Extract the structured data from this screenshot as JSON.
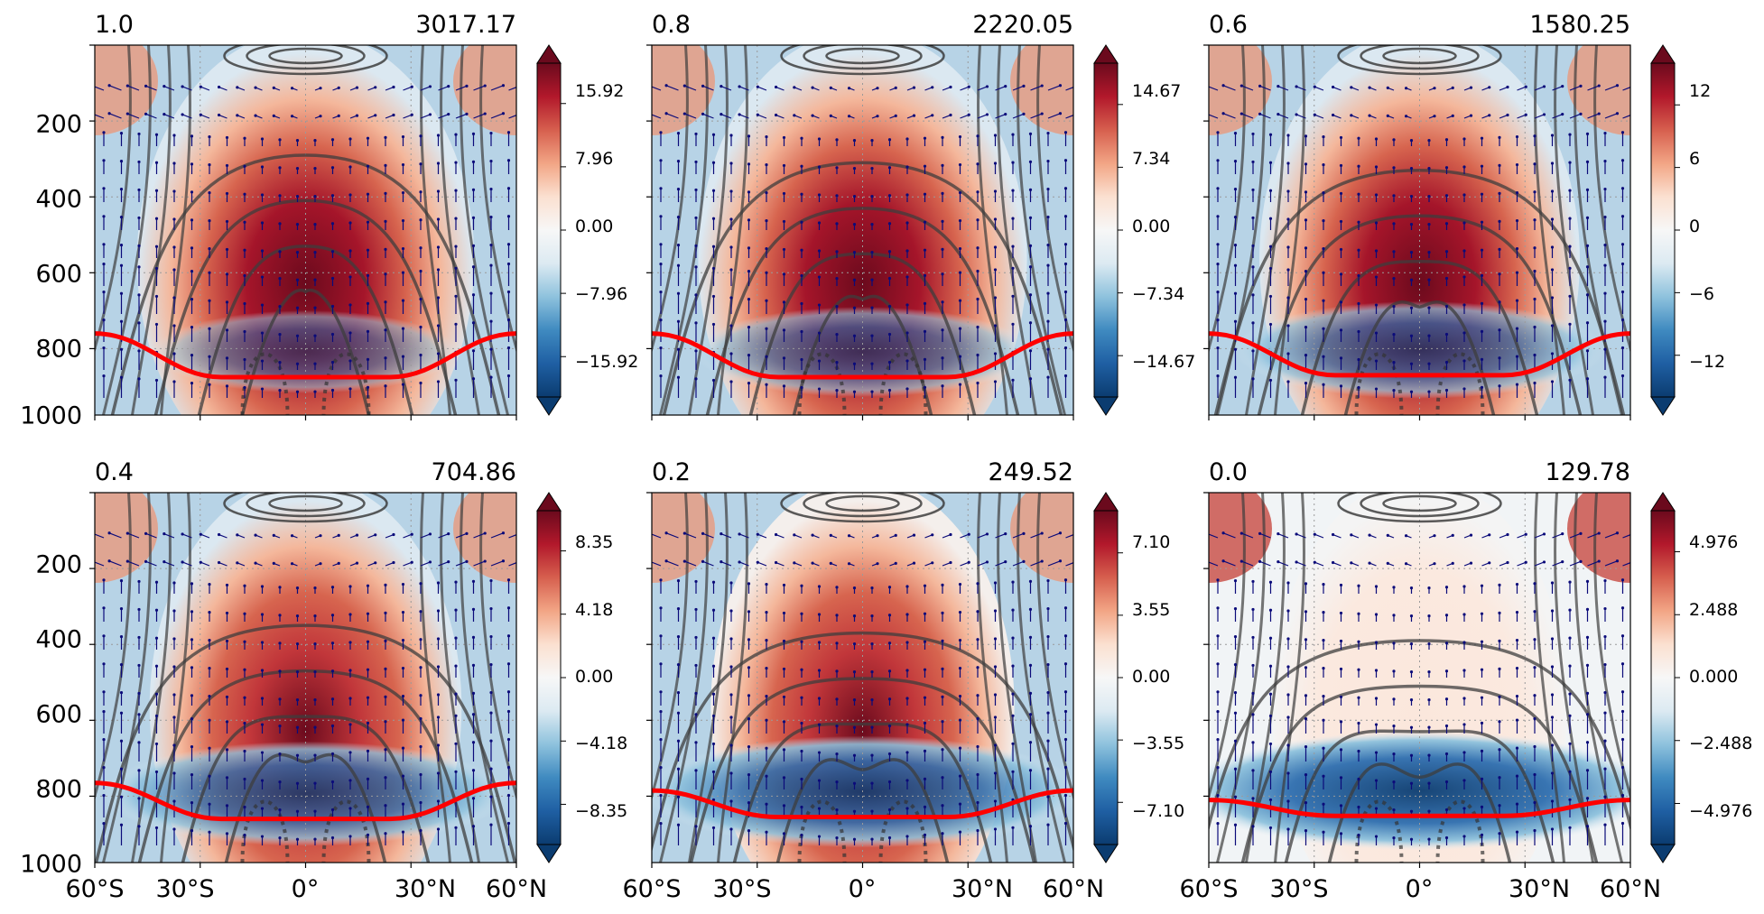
{
  "figure": {
    "y_ticks": [
      "200",
      "400",
      "600",
      "800",
      "1000"
    ],
    "x_ticks": [
      "60°S",
      "30°S",
      "0°",
      "30°N",
      "60°N"
    ]
  },
  "chart_data": [
    {
      "type": "heatmap",
      "title_left": "1.0",
      "title_right": "3017.17",
      "xlim": [
        -60,
        60
      ],
      "ylim": [
        1000,
        25
      ],
      "colorbar_ticks": [
        "15.92",
        "7.96",
        "0.00",
        "−7.96",
        "−15.92"
      ],
      "colorbar_range": [
        -21,
        21
      ],
      "tropopause_equator_hPa": 125,
      "tropopause_edge_hPa": 240
    },
    {
      "type": "heatmap",
      "title_left": "0.8",
      "title_right": "2220.05",
      "xlim": [
        -60,
        60
      ],
      "ylim": [
        1000,
        25
      ],
      "colorbar_ticks": [
        "14.67",
        "7.34",
        "0.00",
        "−7.34",
        "−14.67"
      ],
      "colorbar_range": [
        -19.5,
        19.5
      ],
      "tropopause_equator_hPa": 125,
      "tropopause_edge_hPa": 240
    },
    {
      "type": "heatmap",
      "title_left": "0.6",
      "title_right": "1580.25",
      "xlim": [
        -60,
        60
      ],
      "ylim": [
        1000,
        25
      ],
      "colorbar_ticks": [
        "12",
        "6",
        "0",
        "−6",
        "−12"
      ],
      "colorbar_range": [
        -16,
        16
      ],
      "tropopause_equator_hPa": 130,
      "tropopause_edge_hPa": 240
    },
    {
      "type": "heatmap",
      "title_left": "0.4",
      "title_right": "704.86",
      "xlim": [
        -60,
        60
      ],
      "ylim": [
        1000,
        25
      ],
      "colorbar_ticks": [
        "8.35",
        "4.18",
        "0.00",
        "−4.18",
        "−8.35"
      ],
      "colorbar_range": [
        -11,
        11
      ],
      "tropopause_equator_hPa": 140,
      "tropopause_edge_hPa": 235
    },
    {
      "type": "heatmap",
      "title_left": "0.2",
      "title_right": "249.52",
      "xlim": [
        -60,
        60
      ],
      "ylim": [
        1000,
        25
      ],
      "colorbar_ticks": [
        "7.10",
        "3.55",
        "0.00",
        "−3.55",
        "−7.10"
      ],
      "colorbar_range": [
        -9.5,
        9.5
      ],
      "tropopause_equator_hPa": 145,
      "tropopause_edge_hPa": 215
    },
    {
      "type": "heatmap",
      "title_left": "0.0",
      "title_right": "129.78",
      "xlim": [
        -60,
        60
      ],
      "ylim": [
        1000,
        25
      ],
      "colorbar_ticks": [
        "4.976",
        "2.488",
        "0.000",
        "−2.488",
        "−4.976"
      ],
      "colorbar_range": [
        -6.6,
        6.6
      ],
      "tropopause_equator_hPa": 148,
      "tropopause_edge_hPa": 190
    }
  ]
}
